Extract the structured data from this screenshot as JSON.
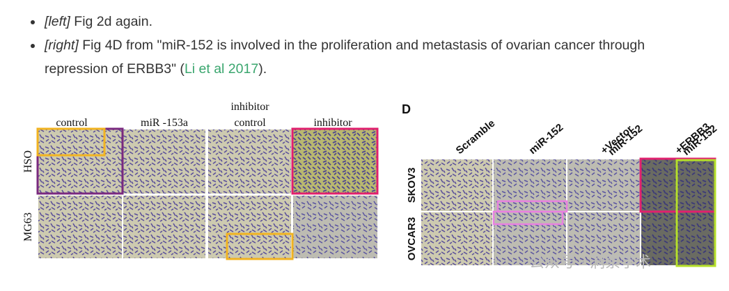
{
  "bullets": [
    {
      "tag": "[left]",
      "text": " Fig 2d again."
    },
    {
      "tag": "[right]",
      "text": " Fig 4D from \"miR-152 is involved in the proliferation and metastasis of ovarian cancer through repression of ERBB3\" (",
      "link": "Li et al 2017",
      "end": ")."
    }
  ],
  "left_figure": {
    "columns": [
      [
        "control"
      ],
      [
        "miR  -153a"
      ],
      [
        "inhibitor",
        "control"
      ],
      [
        "inhibitor"
      ]
    ],
    "rows": [
      "HSO",
      "MG63"
    ]
  },
  "right_figure": {
    "label": "D",
    "columns": [
      [
        "Scramble"
      ],
      [
        "miR-152"
      ],
      [
        "miR-152",
        "+Vector"
      ],
      [
        "miR-152",
        "+ERBB3"
      ]
    ],
    "rows": [
      "SKOV3",
      "OVCAR3"
    ]
  },
  "watermark": "公众号 · 洞察学术"
}
